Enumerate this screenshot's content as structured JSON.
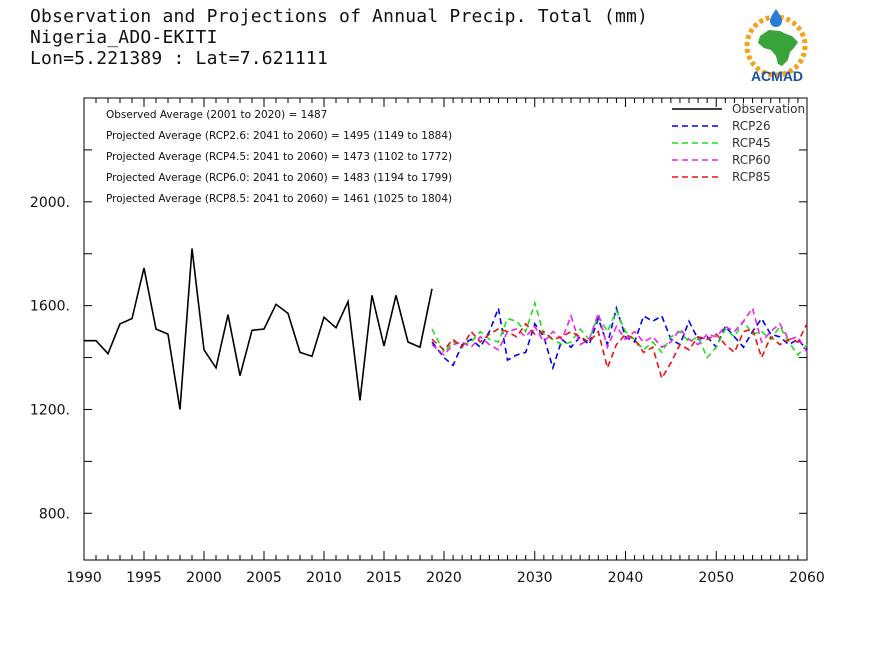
{
  "header": {
    "title": "Observation and Projections of Annual Precip. Total (mm)",
    "location": "Nigeria_ADO-EKITI",
    "coords": "Lon=5.221389 : Lat=7.621111"
  },
  "logo": {
    "text": "ACMAD",
    "name": "acmad-logo"
  },
  "colors": {
    "Observation": "#000000",
    "RCP26": "#0000ee",
    "RCP45": "#22dd22",
    "RCP60": "#ee22ee",
    "RCP85": "#ee1111"
  },
  "annotations": [
    "Observed Average (2001 to 2020) = 1487",
    "Projected Average (RCP2.6: 2041 to 2060) = 1495 (1149 to 1884)",
    "Projected Average (RCP4.5: 2041 to 2060) = 1473 (1102 to 1772)",
    "Projected Average (RCP6.0: 2041 to 2060) = 1483 (1194 to 1799)",
    "Projected Average (RCP8.5: 2041 to 2060) = 1461 (1025 to 1804)"
  ],
  "chart_data": {
    "type": "line",
    "xlim": [
      1990,
      2060
    ],
    "ylim": [
      620,
      2400
    ],
    "grid": false,
    "legend_position": "top-right",
    "x_ticks": [
      "1990",
      "1995",
      "2000",
      "2005",
      "2010",
      "2015",
      "2020",
      "2030",
      "2040",
      "2050",
      "2060"
    ],
    "y_ticks": [
      "800.",
      "1200.",
      "1600.",
      "2000."
    ],
    "series": [
      {
        "name": "Observation",
        "x": [
          1990,
          1991,
          1992,
          1993,
          1994,
          1995,
          1996,
          1997,
          1998,
          1999,
          2000,
          2001,
          2002,
          2003,
          2004,
          2005,
          2006,
          2007,
          2008,
          2009,
          2010,
          2011,
          2012,
          2013,
          2014,
          2015,
          2016,
          2017,
          2018,
          2019
        ],
        "values": [
          1465,
          1465,
          1415,
          1530,
          1550,
          1745,
          1510,
          1490,
          1200,
          1820,
          1430,
          1360,
          1565,
          1330,
          1505,
          1510,
          1605,
          1570,
          1420,
          1405,
          1555,
          1515,
          1615,
          1235,
          1640,
          1445,
          1640,
          1460,
          1440,
          1665
        ]
      },
      {
        "name": "RCP26",
        "x": [
          2019,
          2020,
          2021,
          2022,
          2023,
          2024,
          2025,
          2026,
          2027,
          2028,
          2029,
          2030,
          2031,
          2032,
          2033,
          2034,
          2035,
          2036,
          2037,
          2038,
          2039,
          2040,
          2041,
          2042,
          2043,
          2044,
          2045,
          2046,
          2047,
          2048,
          2049,
          2050,
          2051,
          2052,
          2053,
          2054,
          2055,
          2056,
          2057,
          2058,
          2059,
          2060
        ],
        "values": [
          1460,
          1400,
          1370,
          1450,
          1470,
          1440,
          1500,
          1590,
          1390,
          1410,
          1420,
          1530,
          1480,
          1360,
          1470,
          1440,
          1480,
          1450,
          1550,
          1450,
          1590,
          1480,
          1460,
          1560,
          1540,
          1560,
          1470,
          1450,
          1540,
          1470,
          1480,
          1440,
          1520,
          1480,
          1440,
          1500,
          1550,
          1490,
          1480,
          1450,
          1470,
          1430
        ]
      },
      {
        "name": "RCP45",
        "x": [
          2019,
          2020,
          2021,
          2022,
          2023,
          2024,
          2025,
          2026,
          2027,
          2028,
          2029,
          2030,
          2031,
          2032,
          2033,
          2034,
          2035,
          2036,
          2037,
          2038,
          2039,
          2040,
          2041,
          2042,
          2043,
          2044,
          2045,
          2046,
          2047,
          2048,
          2049,
          2050,
          2051,
          2052,
          2053,
          2054,
          2055,
          2056,
          2057,
          2058,
          2059,
          2060
        ],
        "values": [
          1510,
          1420,
          1460,
          1450,
          1460,
          1500,
          1470,
          1460,
          1550,
          1540,
          1500,
          1610,
          1490,
          1470,
          1450,
          1460,
          1510,
          1470,
          1560,
          1500,
          1580,
          1500,
          1470,
          1430,
          1460,
          1420,
          1480,
          1500,
          1460,
          1480,
          1400,
          1440,
          1510,
          1480,
          1540,
          1490,
          1500,
          1470,
          1520,
          1460,
          1410,
          1450
        ]
      },
      {
        "name": "RCP60",
        "x": [
          2019,
          2020,
          2021,
          2022,
          2023,
          2024,
          2025,
          2026,
          2027,
          2028,
          2029,
          2030,
          2031,
          2032,
          2033,
          2034,
          2035,
          2036,
          2037,
          2038,
          2039,
          2040,
          2041,
          2042,
          2043,
          2044,
          2045,
          2046,
          2047,
          2048,
          2049,
          2050,
          2051,
          2052,
          2053,
          2054,
          2055,
          2056,
          2057,
          2058,
          2059,
          2060
        ],
        "values": [
          1450,
          1410,
          1450,
          1460,
          1440,
          1480,
          1450,
          1430,
          1500,
          1510,
          1480,
          1520,
          1460,
          1500,
          1470,
          1560,
          1450,
          1470,
          1570,
          1440,
          1520,
          1470,
          1500,
          1460,
          1480,
          1440,
          1460,
          1510,
          1470,
          1450,
          1490,
          1480,
          1520,
          1500,
          1540,
          1590,
          1460,
          1500,
          1530,
          1470,
          1480,
          1420
        ]
      },
      {
        "name": "RCP85",
        "x": [
          2019,
          2020,
          2021,
          2022,
          2023,
          2024,
          2025,
          2026,
          2027,
          2028,
          2029,
          2030,
          2031,
          2032,
          2033,
          2034,
          2035,
          2036,
          2037,
          2038,
          2039,
          2040,
          2041,
          2042,
          2043,
          2044,
          2045,
          2046,
          2047,
          2048,
          2049,
          2050,
          2051,
          2052,
          2053,
          2054,
          2055,
          2056,
          2057,
          2058,
          2059,
          2060
        ],
        "values": [
          1470,
          1430,
          1470,
          1440,
          1500,
          1460,
          1490,
          1510,
          1500,
          1480,
          1530,
          1490,
          1500,
          1470,
          1480,
          1500,
          1480,
          1460,
          1500,
          1360,
          1450,
          1490,
          1470,
          1420,
          1440,
          1320,
          1380,
          1450,
          1430,
          1480,
          1470,
          1490,
          1450,
          1420,
          1500,
          1510,
          1400,
          1480,
          1450,
          1470,
          1460,
          1530
        ]
      }
    ]
  }
}
